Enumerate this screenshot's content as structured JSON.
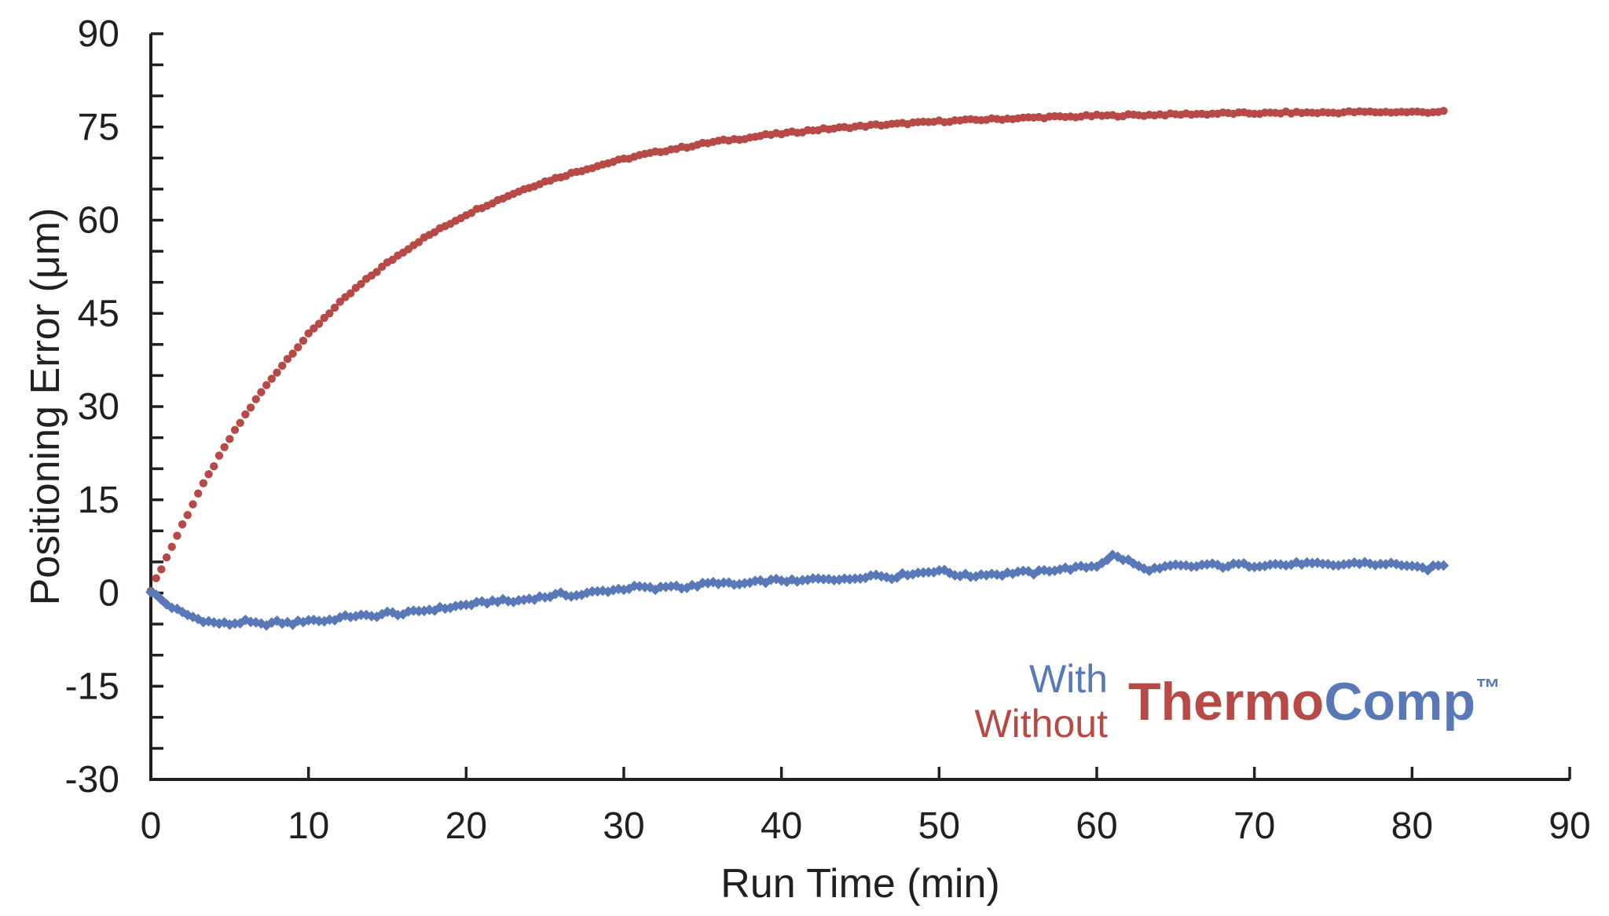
{
  "chart_data": {
    "type": "scatter",
    "title": "",
    "xlabel": "Run Time (min)",
    "ylabel": "Positioning Error (μm)",
    "xlim": [
      0,
      90
    ],
    "ylim": [
      -30,
      90
    ],
    "x_ticks": [
      0,
      10,
      20,
      30,
      40,
      50,
      60,
      70,
      80,
      90
    ],
    "y_ticks": [
      90,
      75,
      60,
      45,
      30,
      15,
      0,
      -15,
      -30
    ],
    "y_minor_tick_step": 5,
    "grid": false,
    "tick_style": "inside",
    "colors": {
      "axis": "#231F20",
      "with_blue": "#5878B8",
      "without_red": "#B74A46"
    },
    "legend": {
      "position": "bottom-right",
      "items": [
        {
          "label": "With",
          "color": "#5878B8"
        },
        {
          "label": "Without",
          "color": "#B74A46"
        }
      ],
      "brand": {
        "thermo": "Thermo",
        "comp": "Comp",
        "trademark": "™"
      }
    },
    "series": [
      {
        "name": "Without ThermoComp",
        "marker": "circle",
        "color": "#B74A46",
        "x": [
          0,
          1,
          2,
          3,
          4,
          5,
          6,
          7,
          8,
          9,
          10,
          11,
          12,
          13,
          14,
          15,
          16,
          17,
          18,
          19,
          20,
          21,
          22,
          23,
          24,
          25,
          26,
          27,
          28,
          29,
          30,
          31,
          32,
          33,
          34,
          35,
          36,
          37,
          38,
          39,
          40,
          41,
          42,
          43,
          44,
          45,
          46,
          47,
          48,
          49,
          50,
          51,
          52,
          53,
          54,
          55,
          56,
          57,
          58,
          59,
          60,
          61,
          62,
          63,
          64,
          65,
          66,
          67,
          68,
          69,
          70,
          71,
          72,
          73,
          74,
          75,
          76,
          77,
          78,
          79,
          80,
          81,
          82
        ],
        "y": [
          0.5,
          5.7,
          11.0,
          16.0,
          20.5,
          24.8,
          28.7,
          32.3,
          35.6,
          38.7,
          41.6,
          44.3,
          46.7,
          49.0,
          51.1,
          53.1,
          54.9,
          56.6,
          58.1,
          59.5,
          60.9,
          62.1,
          63.2,
          64.3,
          65.3,
          66.2,
          67.0,
          67.8,
          68.5,
          69.2,
          69.8,
          70.4,
          70.9,
          71.4,
          71.8,
          72.3,
          72.7,
          73.0,
          73.3,
          73.7,
          73.9,
          74.2,
          74.5,
          74.7,
          74.9,
          75.1,
          75.3,
          75.4,
          75.6,
          75.7,
          75.9,
          76.0,
          76.1,
          76.2,
          76.3,
          76.4,
          76.5,
          76.6,
          76.6,
          76.7,
          76.8,
          76.8,
          76.9,
          76.9,
          77.0,
          77.0,
          77.1,
          77.1,
          77.2,
          77.2,
          77.2,
          77.2,
          77.3,
          77.3,
          77.3,
          77.3,
          77.4,
          77.4,
          77.4,
          77.4,
          77.4,
          77.4,
          77.5
        ]
      },
      {
        "name": "With ThermoComp",
        "marker": "diamond",
        "color": "#5878B8",
        "x": [
          0,
          1,
          2,
          3,
          4,
          5,
          6,
          7,
          8,
          9,
          10,
          11,
          12,
          13,
          14,
          15,
          16,
          17,
          18,
          19,
          20,
          21,
          22,
          23,
          24,
          25,
          26,
          27,
          28,
          29,
          30,
          31,
          32,
          33,
          34,
          35,
          36,
          37,
          38,
          39,
          40,
          41,
          42,
          43,
          44,
          45,
          46,
          47,
          48,
          49,
          50,
          51,
          52,
          53,
          54,
          55,
          56,
          57,
          58,
          59,
          60,
          61,
          62,
          63,
          64,
          65,
          66,
          67,
          68,
          69,
          70,
          71,
          72,
          73,
          74,
          75,
          76,
          77,
          78,
          79,
          80,
          81,
          82
        ],
        "y": [
          0.3,
          -1.8,
          -3.2,
          -4.2,
          -4.8,
          -5.0,
          -4.6,
          -5.1,
          -4.7,
          -4.9,
          -4.3,
          -4.5,
          -4.0,
          -3.6,
          -3.8,
          -3.2,
          -3.4,
          -2.9,
          -2.6,
          -2.3,
          -1.9,
          -1.6,
          -1.2,
          -1.4,
          -0.9,
          -0.6,
          -0.2,
          -0.4,
          0.1,
          0.4,
          0.7,
          1.0,
          0.6,
          1.2,
          0.9,
          1.4,
          1.7,
          1.3,
          1.6,
          1.9,
          2.1,
          1.8,
          2.2,
          2.4,
          2.1,
          2.6,
          2.9,
          2.5,
          3.1,
          3.3,
          3.7,
          3.0,
          2.7,
          3.1,
          3.0,
          3.4,
          3.2,
          3.7,
          3.9,
          4.1,
          4.4,
          6.0,
          5.2,
          3.8,
          3.9,
          4.4,
          4.2,
          4.6,
          4.3,
          4.6,
          4.4,
          4.7,
          4.5,
          4.8,
          4.6,
          4.4,
          4.7,
          4.9,
          4.5,
          4.8,
          4.1,
          3.9,
          4.6
        ]
      }
    ]
  }
}
